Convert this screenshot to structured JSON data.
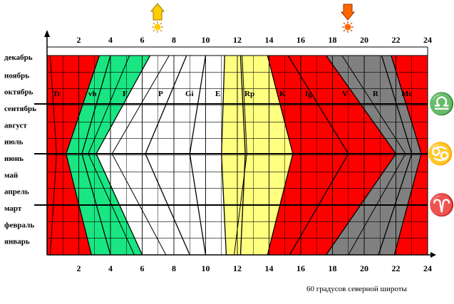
{
  "colors": {
    "red": "#ff0000",
    "green": "#19e682",
    "white": "#ffffff",
    "yellow": "#ffff80",
    "gray": "#808080",
    "arrow_yellow": "#ffcc00",
    "arrow_orange": "#ff6600"
  },
  "months": [
    "декабрь",
    "ноябрь",
    "октябрь",
    "сентябрь",
    "август",
    "июль",
    "июнь",
    "май",
    "апрель",
    "март",
    "февраль",
    "январь"
  ],
  "hour_ticks": [
    "2",
    "4",
    "6",
    "8",
    "10",
    "12",
    "14",
    "16",
    "18",
    "20",
    "22",
    "24"
  ],
  "zone_labels": [
    "Tr",
    "vb",
    "F",
    "P",
    "Gi",
    "E",
    "Rp",
    "K",
    "Ig",
    "V",
    "R",
    "Mc"
  ],
  "zodiac": {
    "libra": "♎",
    "cancer": "♋",
    "aries": "♈"
  },
  "icons": {
    "sunrise": "sunrise-arrow-icon",
    "sunset": "sunset-arrow-icon"
  },
  "caption": "60 градусов северной широты"
}
